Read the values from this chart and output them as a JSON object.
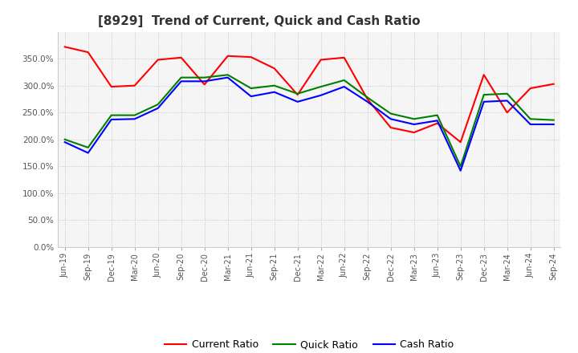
{
  "title": "[8929]  Trend of Current, Quick and Cash Ratio",
  "x_labels": [
    "Jun-19",
    "Sep-19",
    "Dec-19",
    "Mar-20",
    "Jun-20",
    "Sep-20",
    "Dec-20",
    "Mar-21",
    "Jun-21",
    "Sep-21",
    "Dec-21",
    "Mar-22",
    "Jun-22",
    "Sep-22",
    "Dec-22",
    "Mar-23",
    "Jun-23",
    "Sep-23",
    "Dec-23",
    "Mar-24",
    "Jun-24",
    "Sep-24"
  ],
  "current_ratio": [
    372,
    362,
    298,
    300,
    348,
    352,
    302,
    355,
    353,
    332,
    283,
    348,
    352,
    275,
    222,
    213,
    230,
    195,
    320,
    250,
    295,
    303
  ],
  "quick_ratio": [
    200,
    185,
    245,
    245,
    265,
    315,
    315,
    320,
    295,
    300,
    285,
    298,
    310,
    278,
    248,
    238,
    245,
    150,
    283,
    285,
    238,
    236
  ],
  "cash_ratio": [
    195,
    175,
    237,
    238,
    258,
    308,
    308,
    315,
    280,
    288,
    270,
    282,
    298,
    270,
    238,
    228,
    235,
    142,
    270,
    272,
    228,
    228
  ],
  "current_color": "#ff0000",
  "quick_color": "#008000",
  "cash_color": "#0000ff",
  "ylim": [
    0,
    400
  ],
  "yticks": [
    0,
    50,
    100,
    150,
    200,
    250,
    300,
    350
  ],
  "background_color": "#ffffff",
  "plot_bg_color": "#f5f5f5",
  "grid_color": "#bbbbbb",
  "title_fontsize": 11,
  "legend_labels": [
    "Current Ratio",
    "Quick Ratio",
    "Cash Ratio"
  ]
}
